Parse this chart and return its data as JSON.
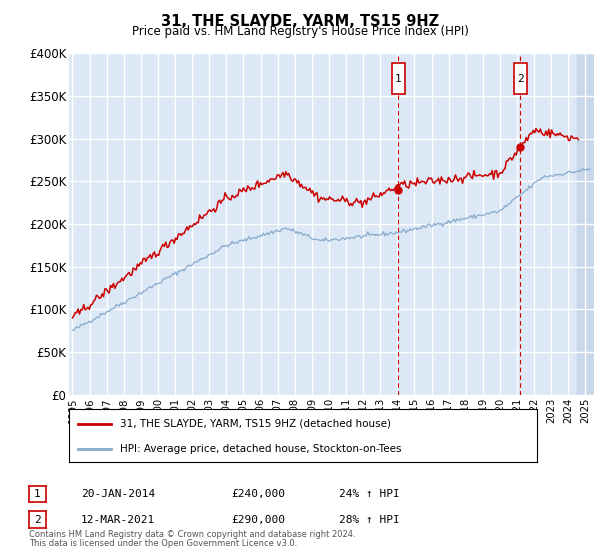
{
  "title": "31, THE SLAYDE, YARM, TS15 9HZ",
  "subtitle": "Price paid vs. HM Land Registry's House Price Index (HPI)",
  "ylabel_ticks": [
    "£0",
    "£50K",
    "£100K",
    "£150K",
    "£200K",
    "£250K",
    "£300K",
    "£350K",
    "£400K"
  ],
  "ytick_values": [
    0,
    50000,
    100000,
    150000,
    200000,
    250000,
    300000,
    350000,
    400000
  ],
  "ylim": [
    0,
    400000
  ],
  "xlim_start": 1994.8,
  "xlim_end": 2025.5,
  "xticks": [
    1995,
    1996,
    1997,
    1998,
    1999,
    2000,
    2001,
    2002,
    2003,
    2004,
    2005,
    2006,
    2007,
    2008,
    2009,
    2010,
    2011,
    2012,
    2013,
    2014,
    2015,
    2016,
    2017,
    2018,
    2019,
    2020,
    2021,
    2022,
    2023,
    2024,
    2025
  ],
  "red_line_color": "#cc0000",
  "blue_line_color": "#88aacc",
  "plot_bg_color": "#dce8f5",
  "grid_color": "#ffffff",
  "ann1_x": 2014.05,
  "ann1_y": 240000,
  "ann1_label": "1",
  "ann1_date": "20-JAN-2014",
  "ann1_price": "£240,000",
  "ann1_pct": "24% ↑ HPI",
  "ann2_x": 2021.2,
  "ann2_y": 290000,
  "ann2_label": "2",
  "ann2_date": "12-MAR-2021",
  "ann2_price": "£290,000",
  "ann2_pct": "28% ↑ HPI",
  "legend_line1": "31, THE SLAYDE, YARM, TS15 9HZ (detached house)",
  "legend_line2": "HPI: Average price, detached house, Stockton-on-Tees",
  "footer1": "Contains HM Land Registry data © Crown copyright and database right 2024.",
  "footer2": "This data is licensed under the Open Government Licence v3.0."
}
